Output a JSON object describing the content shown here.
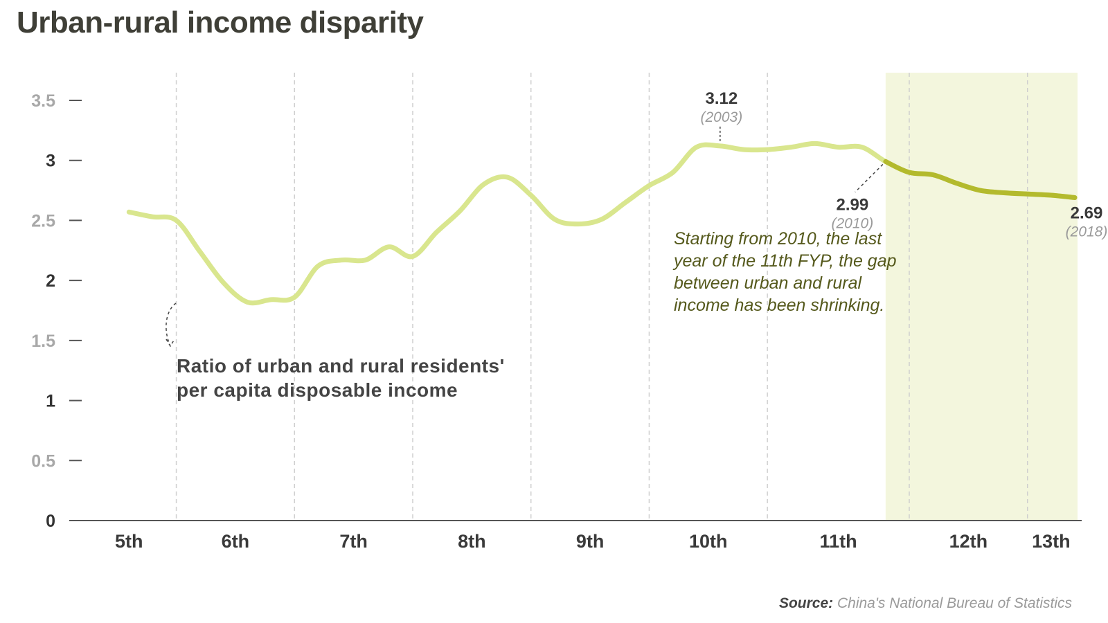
{
  "title": "Urban-rural income disparity",
  "source": {
    "label": "Source:",
    "text": "China's National Bureau of Statistics"
  },
  "chart_data": {
    "type": "line",
    "title": "Urban-rural income disparity",
    "xlabel": "",
    "ylabel": "",
    "categories": [
      "5th",
      "6th",
      "7th",
      "8th",
      "9th",
      "10th",
      "11th",
      "12th",
      "13th"
    ],
    "ylim": [
      0,
      3.5
    ],
    "yticks": [
      {
        "label": "0",
        "value": 0
      },
      {
        "label": "0.5",
        "value": 0.5
      },
      {
        "label": "1",
        "value": 1
      },
      {
        "label": "1.5",
        "value": 1.5
      },
      {
        "label": "2",
        "value": 2
      },
      {
        "label": "2.5",
        "value": 2.5
      },
      {
        "label": "3",
        "value": 3
      },
      {
        "label": "3.5",
        "value": 3.5
      }
    ],
    "x_range": [
      1976,
      2018
    ],
    "period_boundaries": [
      1980,
      1985,
      1990,
      1995,
      2000,
      2005,
      2011,
      2016
    ],
    "highlight_range": [
      2010,
      2018
    ],
    "grid": "vertical dashed lines at plan boundaries",
    "colors": {
      "series": "#d9e68e",
      "series_highlight": "#b3ba2d",
      "highlight_band": "#f3f6dd",
      "axis": "#555555"
    },
    "series": [
      {
        "x": [
          1978,
          1979,
          1980,
          1981,
          1982,
          1983,
          1984,
          1985,
          1986,
          1987,
          1988,
          1989,
          1990,
          1991,
          1992,
          1993,
          1994,
          1995,
          1996,
          1997,
          1998,
          1999,
          2000,
          2001,
          2002,
          2003,
          2004,
          2005,
          2006,
          2007,
          2008,
          2009,
          2010,
          2011,
          2012,
          2013,
          2014,
          2015,
          2016,
          2017,
          2018
        ],
        "values": [
          2.57,
          2.53,
          2.5,
          2.24,
          1.98,
          1.82,
          1.84,
          1.86,
          2.12,
          2.17,
          2.17,
          2.28,
          2.2,
          2.4,
          2.58,
          2.8,
          2.86,
          2.71,
          2.51,
          2.47,
          2.51,
          2.65,
          2.79,
          2.9,
          3.11,
          3.12,
          3.09,
          3.09,
          3.11,
          3.14,
          3.11,
          3.11,
          2.99,
          2.9,
          2.88,
          2.81,
          2.75,
          2.73,
          2.72,
          2.71,
          2.69
        ]
      }
    ],
    "annotations": [
      {
        "value": "3.12",
        "year": "(2003)"
      },
      {
        "value": "2.99",
        "year": "(2010)"
      },
      {
        "value": "2.69",
        "year": "(2018)"
      }
    ],
    "note_lines": [
      "Starting from 2010, the last",
      "year of the 11th FYP, the gap",
      "between urban and rural",
      "income has been shrinking."
    ],
    "series_note_lines": [
      "Ratio of urban and rural residents'",
      "per capita disposable income"
    ]
  }
}
